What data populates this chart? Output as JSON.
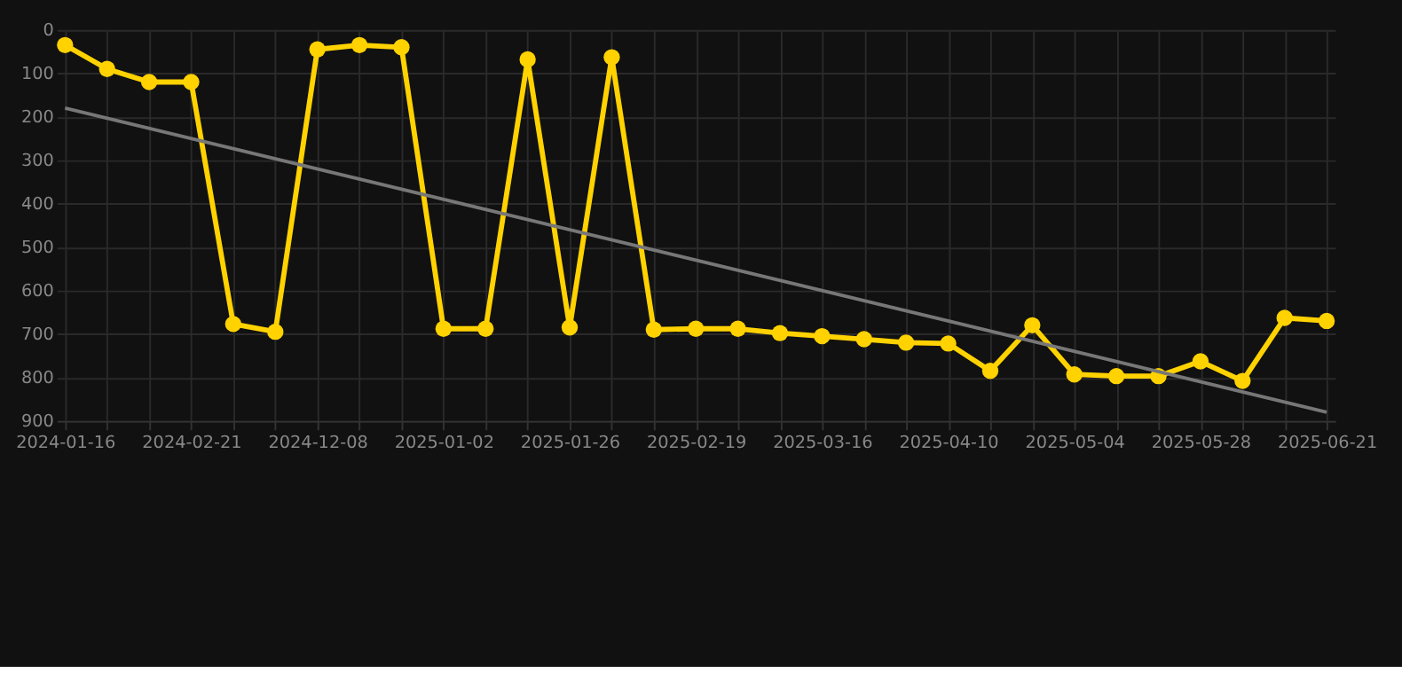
{
  "chart_data": {
    "type": "line",
    "categories": [
      "2024-01-16",
      null,
      null,
      "2024-02-21",
      null,
      null,
      "2024-12-08",
      null,
      null,
      "2025-01-02",
      null,
      null,
      "2025-01-26",
      null,
      null,
      "2025-02-19",
      null,
      null,
      "2025-03-16",
      null,
      null,
      "2025-04-10",
      null,
      null,
      "2025-05-04",
      null,
      null,
      "2025-05-28",
      null,
      null,
      "2025-06-21"
    ],
    "series": [
      {
        "color": "#ffd200",
        "marker": "circle",
        "values": [
          35,
          90,
          120,
          120,
          677,
          695,
          45,
          35,
          40,
          688,
          688,
          68,
          685,
          63,
          690,
          688,
          688,
          698,
          705,
          712,
          720,
          722,
          785,
          680,
          793,
          797,
          797,
          763,
          808,
          663,
          670
        ]
      },
      {
        "type": "line",
        "color": "#777777",
        "marker": "none",
        "values": [
          180,
          null,
          null,
          null,
          null,
          null,
          null,
          null,
          null,
          null,
          null,
          null,
          null,
          null,
          null,
          null,
          null,
          null,
          null,
          null,
          null,
          null,
          null,
          null,
          null,
          null,
          null,
          null,
          null,
          null,
          880
        ]
      }
    ],
    "ylim": [
      900,
      0
    ],
    "yticks": [
      0,
      100,
      200,
      300,
      400,
      500,
      600,
      700,
      800,
      900
    ],
    "grid": true,
    "line_style": "solid"
  }
}
